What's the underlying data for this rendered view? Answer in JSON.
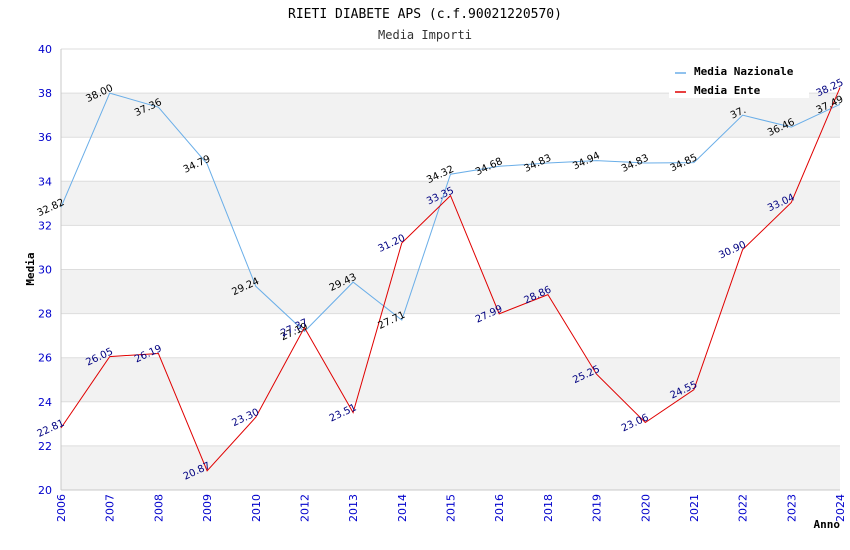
{
  "chart_data": {
    "type": "line",
    "title": "RIETI DIABETE APS (c.f.90021220570)",
    "subtitle": "Media Importi",
    "ylabel": "Media",
    "xlabel": "Anno",
    "ylim": [
      20,
      40
    ],
    "yticks": [
      20,
      22,
      24,
      26,
      28,
      30,
      32,
      34,
      36,
      38,
      40
    ],
    "categories": [
      "2006",
      "2007",
      "2008",
      "2009",
      "2010",
      "2012",
      "2013",
      "2014",
      "2015",
      "2016",
      "2018",
      "2019",
      "2020",
      "2021",
      "2022",
      "2023",
      "2024"
    ],
    "legend_position": "top-right",
    "grid": true,
    "series": [
      {
        "name": "Media Nazionale",
        "color": "#6aaee8",
        "values": [
          32.82,
          38.0,
          37.36,
          34.79,
          29.24,
          27.19,
          29.43,
          27.71,
          34.32,
          34.68,
          34.83,
          34.94,
          34.83,
          34.85,
          37.0,
          36.46,
          37.49
        ],
        "labels": [
          "32.82",
          "38.00",
          "37.36",
          "34.79",
          "29.24",
          "27.19",
          "29.43",
          "27.71",
          "34.32",
          "34.68",
          "34.83",
          "34.94",
          "34.83",
          "34.85",
          "37.",
          "36.46",
          "37.49"
        ]
      },
      {
        "name": "Media Ente",
        "color": "#e00000",
        "values": [
          22.81,
          26.05,
          26.19,
          20.87,
          23.3,
          27.37,
          23.51,
          31.2,
          33.35,
          27.99,
          28.86,
          25.25,
          23.06,
          24.55,
          30.9,
          33.04,
          38.25
        ],
        "labels": [
          "22.81",
          "26.05",
          "26.19",
          "20.87",
          "23.30",
          "27.37",
          "23.51",
          "31.20",
          "33.35",
          "27.99",
          "28.86",
          "25.25",
          "23.06",
          "24.55",
          "30.90",
          "33.04",
          "38.25"
        ]
      }
    ]
  }
}
